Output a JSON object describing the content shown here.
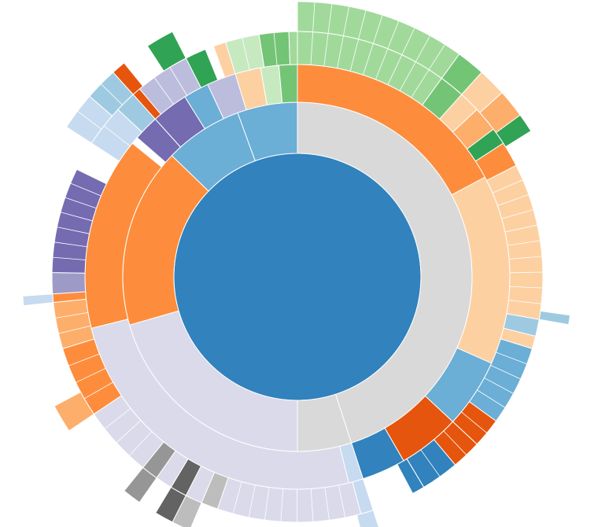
{
  "chart_data": {
    "type": "sunburst",
    "angle_unit": "degrees",
    "rings": [
      {
        "level": 0,
        "segments": [
          {
            "start": 0,
            "end": 360,
            "color": "#3182bd"
          }
        ]
      },
      {
        "level": 1,
        "segments": [
          {
            "start": 0,
            "end": 162,
            "color": "#d9d9d9"
          },
          {
            "start": 162,
            "end": 180,
            "color": "#d9d9d9"
          },
          {
            "start": 180,
            "end": 254,
            "color": "#dadaeb"
          },
          {
            "start": 254,
            "end": 314,
            "color": "#fd8d3c"
          },
          {
            "start": 314,
            "end": 340,
            "color": "#6baed6"
          },
          {
            "start": 340,
            "end": 360,
            "color": "#6baed6"
          }
        ]
      },
      {
        "level": 2,
        "segments": [
          {
            "start": 0,
            "end": 62,
            "color": "#fd8d3c"
          },
          {
            "start": 62,
            "end": 114,
            "color": "#fdd0a2"
          },
          {
            "start": 114,
            "end": 133,
            "color": "#6baed6"
          },
          {
            "start": 133,
            "end": 150,
            "color": "#e6550d"
          },
          {
            "start": 150,
            "end": 162,
            "color": "#3182bd"
          },
          {
            "start": 162,
            "end": 166,
            "color": "#c6dbef"
          },
          {
            "start": 166,
            "end": 256,
            "color": "#dadaeb"
          },
          {
            "start": 256,
            "end": 309,
            "color": "#fd8d3c"
          },
          {
            "start": 309,
            "end": 311,
            "color": "#ffffff"
          },
          {
            "start": 311,
            "end": 318,
            "color": "#756bb1"
          },
          {
            "start": 318,
            "end": 328,
            "color": "#756bb1"
          },
          {
            "start": 328,
            "end": 335,
            "color": "#6baed6"
          },
          {
            "start": 335,
            "end": 343,
            "color": "#bcbddc"
          },
          {
            "start": 343,
            "end": 350,
            "color": "#fdd0a2"
          },
          {
            "start": 350,
            "end": 355,
            "color": "#c7e9c0"
          },
          {
            "start": 355,
            "end": 360,
            "color": "#74c476"
          }
        ]
      },
      {
        "level": 3,
        "segments": [
          {
            "start": 0,
            "end": 36,
            "color": "#a1d99b"
          },
          {
            "start": 36,
            "end": 42,
            "color": "#74c476"
          },
          {
            "start": 42,
            "end": 47,
            "color": "#fdd0a2"
          },
          {
            "start": 47,
            "end": 53,
            "color": "#fdae6b"
          },
          {
            "start": 53,
            "end": 57,
            "color": "#31a354"
          },
          {
            "start": 57,
            "end": 63,
            "color": "#fd8d3c"
          },
          {
            "start": 63,
            "end": 100,
            "color": "#fdd0a2"
          },
          {
            "start": 100,
            "end": 104,
            "color": "#9ecae1"
          },
          {
            "start": 104,
            "end": 107,
            "color": "#fdd0a2"
          },
          {
            "start": 107,
            "end": 126,
            "color": "#6baed6"
          },
          {
            "start": 126,
            "end": 133,
            "color": "#e6550d"
          },
          {
            "start": 133,
            "end": 140,
            "color": "#e6550d"
          },
          {
            "start": 140,
            "end": 149,
            "color": "#3182bd"
          },
          {
            "start": 149,
            "end": 152,
            "color": "#3182bd"
          },
          {
            "start": 152,
            "end": 162,
            "color": "#ffffff"
          },
          {
            "start": 162,
            "end": 165,
            "color": "#c6dbef"
          },
          {
            "start": 165,
            "end": 199,
            "color": "#dadaeb"
          },
          {
            "start": 199,
            "end": 203,
            "color": "#bdbdbd"
          },
          {
            "start": 203,
            "end": 207,
            "color": "#dadaeb"
          },
          {
            "start": 207,
            "end": 211,
            "color": "#636363"
          },
          {
            "start": 211,
            "end": 215,
            "color": "#dadaeb"
          },
          {
            "start": 215,
            "end": 219,
            "color": "#969696"
          },
          {
            "start": 219,
            "end": 236,
            "color": "#dadaeb"
          },
          {
            "start": 236,
            "end": 253,
            "color": "#fd8d3c"
          },
          {
            "start": 253,
            "end": 264,
            "color": "#fdae6b"
          },
          {
            "start": 264,
            "end": 266,
            "color": "#fd8d3c"
          },
          {
            "start": 266,
            "end": 271,
            "color": "#9e9ac8"
          },
          {
            "start": 271,
            "end": 296,
            "color": "#756bb1"
          },
          {
            "start": 296,
            "end": 303,
            "color": "#ffffff"
          },
          {
            "start": 303,
            "end": 313,
            "color": "#c6dbef"
          },
          {
            "start": 313,
            "end": 318,
            "color": "#9ecae1"
          },
          {
            "start": 318,
            "end": 320,
            "color": "#e6550d"
          },
          {
            "start": 320,
            "end": 333,
            "color": "#bcbddc"
          },
          {
            "start": 333,
            "end": 338,
            "color": "#31a354"
          },
          {
            "start": 338,
            "end": 340,
            "color": "#ffffff"
          },
          {
            "start": 340,
            "end": 343,
            "color": "#fdd0a2"
          },
          {
            "start": 343,
            "end": 351,
            "color": "#c7e9c0"
          },
          {
            "start": 351,
            "end": 358,
            "color": "#74c476"
          },
          {
            "start": 358,
            "end": 360,
            "color": "#a1d99b"
          }
        ]
      },
      {
        "level": 4,
        "segments": [
          {
            "start": 0,
            "end": 36,
            "color": "#a1d99b"
          },
          {
            "start": 36,
            "end": 42,
            "color": "#74c476"
          },
          {
            "start": 42,
            "end": 48,
            "color": "#fdd0a2"
          },
          {
            "start": 48,
            "end": 54,
            "color": "#fdae6b"
          },
          {
            "start": 54,
            "end": 58,
            "color": "#31a354"
          },
          {
            "start": 98,
            "end": 100,
            "color": "#9ecae1"
          },
          {
            "start": 215,
            "end": 219,
            "color": "#969696"
          },
          {
            "start": 207,
            "end": 211,
            "color": "#636363"
          },
          {
            "start": 203,
            "end": 207,
            "color": "#bdbdbd"
          },
          {
            "start": 162,
            "end": 166,
            "color": "#c6dbef"
          },
          {
            "start": 236,
            "end": 242,
            "color": "#fdae6b"
          },
          {
            "start": 264,
            "end": 266,
            "color": "#c6dbef"
          },
          {
            "start": 303,
            "end": 311,
            "color": "#c6dbef"
          },
          {
            "start": 311,
            "end": 318,
            "color": "#9ecae1"
          },
          {
            "start": 318,
            "end": 321,
            "color": "#e6550d"
          },
          {
            "start": 327,
            "end": 333,
            "color": "#31a354"
          }
        ]
      }
    ]
  }
}
